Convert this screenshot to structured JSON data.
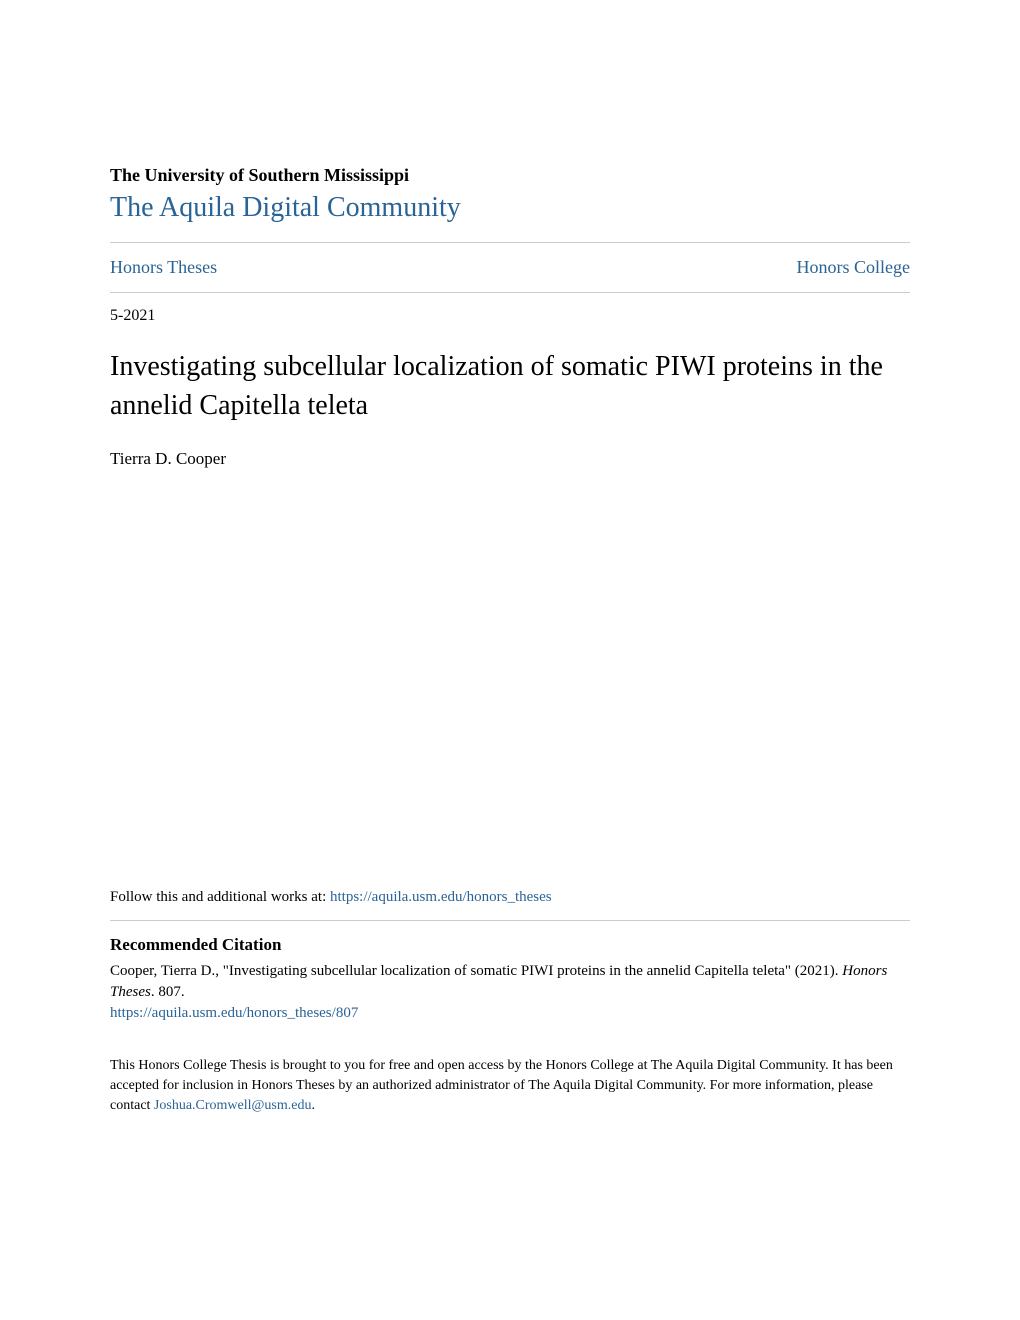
{
  "header": {
    "university": "The University of Southern Mississippi",
    "community": "The Aquila Digital Community"
  },
  "nav": {
    "left": "Honors Theses",
    "right": "Honors College"
  },
  "date": "5-2021",
  "title": "Investigating subcellular localization of somatic PIWI proteins in the annelid Capitella teleta",
  "author": "Tierra D. Cooper",
  "follow": {
    "prefix": "Follow this and additional works at: ",
    "url": "https://aquila.usm.edu/honors_theses"
  },
  "citation": {
    "heading": "Recommended Citation",
    "text_part1": "Cooper, Tierra D., \"Investigating subcellular localization of somatic PIWI proteins in the annelid Capitella teleta\" (2021). ",
    "text_italic": "Honors Theses",
    "text_part2": ". 807.",
    "url": "https://aquila.usm.edu/honors_theses/807"
  },
  "access": {
    "text": "This Honors College Thesis is brought to you for free and open access by the Honors College at The Aquila Digital Community. It has been accepted for inclusion in Honors Theses by an authorized administrator of The Aquila Digital Community. For more information, please contact ",
    "email": "Joshua.Cromwell@usm.edu",
    "suffix": "."
  },
  "colors": {
    "link": "#2a6496",
    "text": "#000000",
    "divider": "#cccccc",
    "background": "#ffffff"
  },
  "typography": {
    "body_font": "Georgia, Times New Roman, serif",
    "university_fontsize": 18,
    "community_fontsize": 28,
    "nav_fontsize": 18,
    "title_fontsize": 28,
    "author_fontsize": 17,
    "citation_heading_fontsize": 17,
    "body_text_fontsize": 15,
    "access_text_fontsize": 14
  }
}
